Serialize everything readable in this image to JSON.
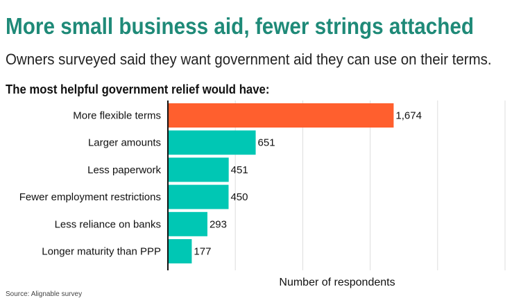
{
  "title": "More small business aid, fewer strings attached",
  "subtitle": "Owners surveyed said they want government aid they can use on their terms.",
  "source": "Source: Alignable survey",
  "colors": {
    "highlight": "#ff5f2e",
    "bar": "#00c7b4",
    "title": "#1f8a78",
    "grid": "#dddddd"
  },
  "chart_data": {
    "type": "bar",
    "orientation": "horizontal",
    "title": "The most helpful government relief would have:",
    "xlabel": "Number of respondents",
    "ylabel": "",
    "xlim": [
      0,
      2500
    ],
    "grid": true,
    "categories": [
      "More flexible terms",
      "Larger amounts",
      "Less paperwork",
      "Fewer employment restrictions",
      "Less reliance on banks",
      "Longer maturity than PPP"
    ],
    "values": [
      1674,
      651,
      451,
      450,
      293,
      177
    ],
    "value_labels": [
      "1,674",
      "651",
      "451",
      "450",
      "293",
      "177"
    ],
    "highlight_index": 0
  }
}
